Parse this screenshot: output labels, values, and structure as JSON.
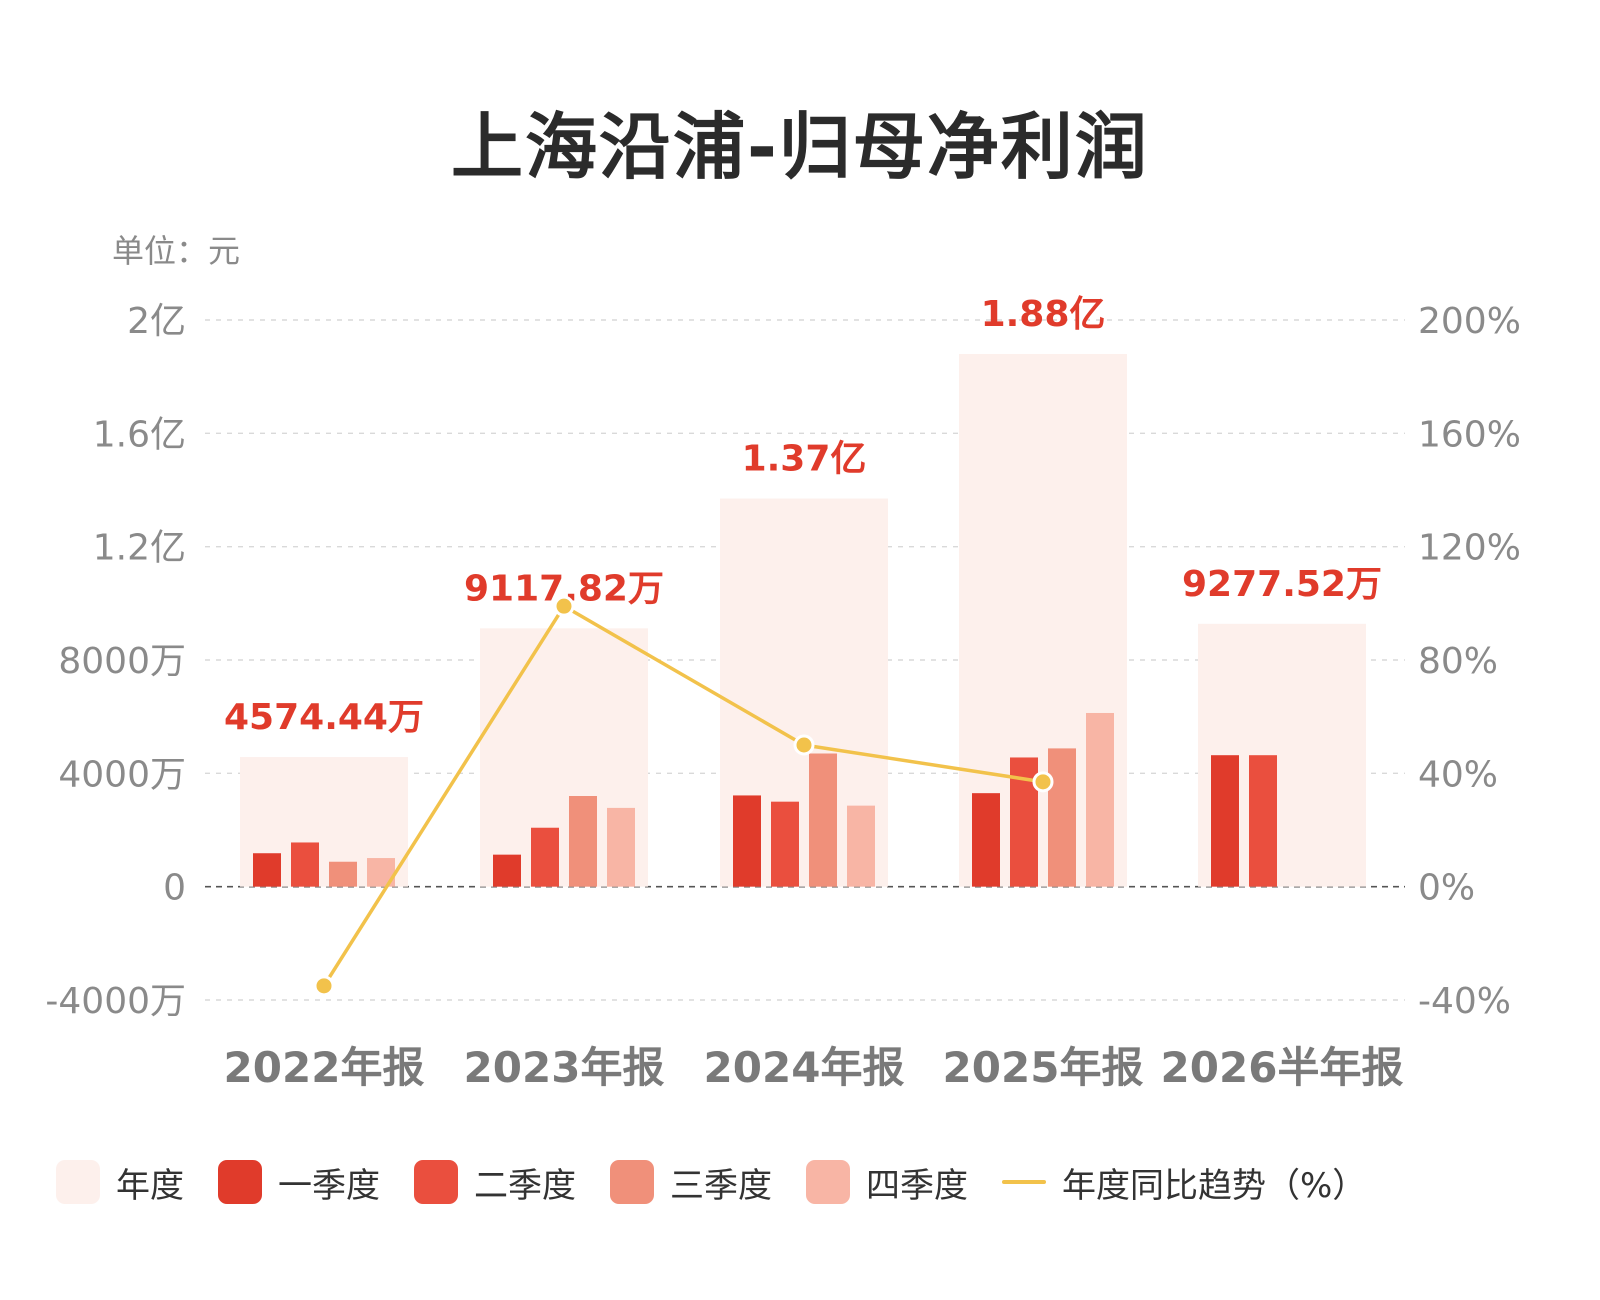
{
  "title": "上海沿浦-归母净利润",
  "unit_label": "单位：元",
  "colors": {
    "annual": "#fdf0ec",
    "q1": "#e03b2b",
    "q2": "#ea4f3e",
    "q3": "#f0907a",
    "q4": "#f8b5a5",
    "trend": "#f2c24b",
    "value_label": "#e03b2b",
    "grid": "#d9d9d9",
    "axis_text": "#8a8a8a"
  },
  "chart_data": {
    "type": "bar",
    "categories": [
      "2022年报",
      "2023年报",
      "2024年报",
      "2025年报",
      "2026半年报"
    ],
    "y_unit": "万元",
    "ylim": [
      -4000,
      20000
    ],
    "y_ticks": [
      -4000,
      0,
      4000,
      8000,
      12000,
      16000,
      20000
    ],
    "y_tick_labels": [
      "-4000万",
      "0",
      "4000万",
      "8000万",
      "1.2亿",
      "1.6亿",
      "2亿"
    ],
    "y2lim": [
      -40,
      200
    ],
    "y2_ticks": [
      -40,
      0,
      40,
      80,
      120,
      160,
      200
    ],
    "y2_tick_labels": [
      "-40%",
      "0%",
      "40%",
      "80%",
      "120%",
      "160%",
      "200%"
    ],
    "grid": true,
    "series": [
      {
        "name": "年度",
        "key": "annual",
        "values": [
          4574.44,
          9117.82,
          13700,
          18800,
          9277.52
        ]
      },
      {
        "name": "一季度",
        "key": "q1",
        "values": [
          1180,
          1130,
          3220,
          3300,
          4640
        ]
      },
      {
        "name": "二季度",
        "key": "q2",
        "values": [
          1560,
          2080,
          3000,
          4560,
          4640
        ]
      },
      {
        "name": "三季度",
        "key": "q3",
        "values": [
          880,
          3200,
          4700,
          4880,
          null
        ]
      },
      {
        "name": "四季度",
        "key": "q4",
        "values": [
          1010,
          2780,
          2860,
          6130,
          null
        ]
      }
    ],
    "annual_value_labels": [
      "4574.44万",
      "9117.82万",
      "1.37亿",
      "1.88亿",
      "9277.52万"
    ],
    "trend": {
      "name": "年度同比趋势（%）",
      "values": [
        -35,
        99,
        50,
        37,
        null
      ]
    }
  },
  "legend": [
    {
      "label": "年度",
      "key": "annual",
      "kind": "swatch"
    },
    {
      "label": "一季度",
      "key": "q1",
      "kind": "swatch"
    },
    {
      "label": "二季度",
      "key": "q2",
      "kind": "swatch"
    },
    {
      "label": "三季度",
      "key": "q3",
      "kind": "swatch"
    },
    {
      "label": "四季度",
      "key": "q4",
      "kind": "swatch"
    },
    {
      "label": "年度同比趋势（%）",
      "key": "trend",
      "kind": "line"
    }
  ]
}
